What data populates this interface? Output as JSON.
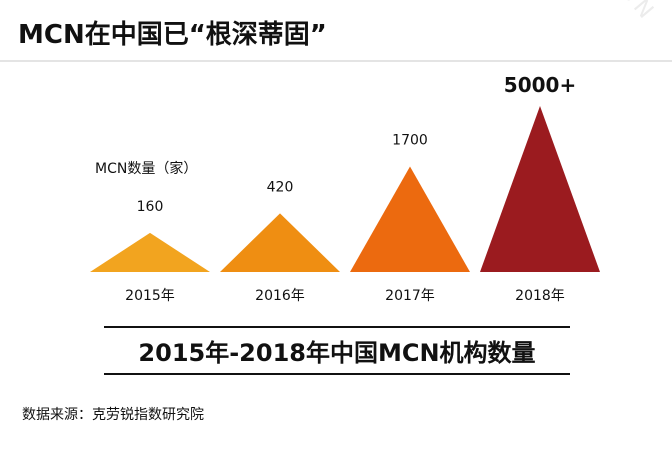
{
  "header": {
    "title": "MCN在中国已“根深蒂固”"
  },
  "unit_label": "MCN数量（家）",
  "caption": "2015年-2018年中国MCN机构数量",
  "source": "数据来源：克劳锐指数研究院",
  "watermark": "YUMEK.CN",
  "chart_data": {
    "type": "bar",
    "mark_shape": "triangle",
    "categories": [
      "2015年",
      "2016年",
      "2017年",
      "2018年"
    ],
    "values": [
      160,
      420,
      1700,
      5000
    ],
    "data_labels": [
      "160",
      "420",
      "1700",
      "5000+"
    ],
    "colors": [
      "#f2a41f",
      "#ef8e12",
      "#ec6a0f",
      "#9b1b1f"
    ],
    "title": "2015年-2018年中国MCN机构数量",
    "ylabel": "MCN数量（家）",
    "xlabel": "",
    "legend": "none",
    "grid": false,
    "y_scale": "nonlinear"
  }
}
